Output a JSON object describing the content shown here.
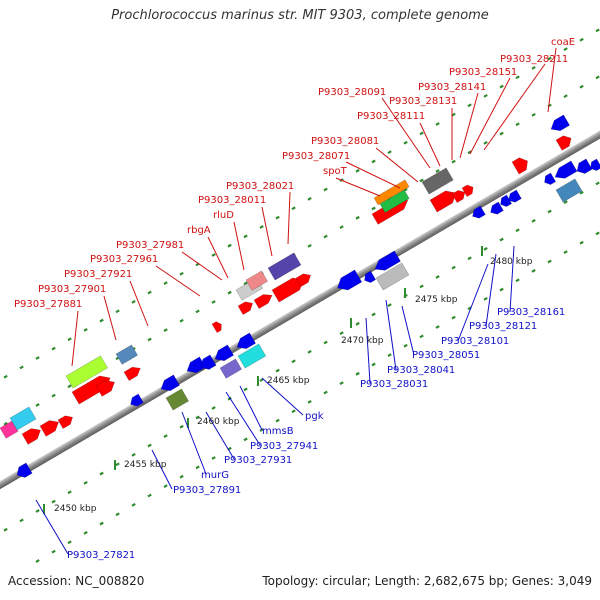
{
  "title": "Prochlorococcus marinus str. MIT 9303, complete genome",
  "footer": {
    "accession": "Accession: NC_008820",
    "summary": "Topology: circular; Length: 2,682,675 bp; Genes: 3,049"
  },
  "axis_labels": [
    "2450 kbp",
    "2455 kbp",
    "2460 kbp",
    "2465 kbp",
    "2470 kbp",
    "2475 kbp",
    "2480 kbp"
  ],
  "upper_labels": [
    "coaE",
    "P9303_28211",
    "P9303_28151",
    "P9303_28141",
    "P9303_28131",
    "P9303_28111",
    "P9303_28091",
    "P9303_28081",
    "P9303_28071",
    "spoT",
    "P9303_28021",
    "P9303_28011",
    "rluD",
    "rbgA",
    "P9303_27981",
    "P9303_27961",
    "P9303_27921",
    "P9303_27901",
    "P9303_27881"
  ],
  "lower_labels": [
    "P9303_28161",
    "P9303_28121",
    "P9303_28101",
    "P9303_28051",
    "P9303_28041",
    "P9303_28031",
    "pgk",
    "mmsB",
    "P9303_27941",
    "P9303_27931",
    "murG",
    "P9303_27891",
    "P9303_27821"
  ],
  "colors": {
    "forward": "#ff0000",
    "reverse": "#0000ee",
    "backbone": "#888888",
    "tick": "#2e8b2e",
    "label_upper": "#d01010",
    "label_lower": "#1010c8"
  }
}
